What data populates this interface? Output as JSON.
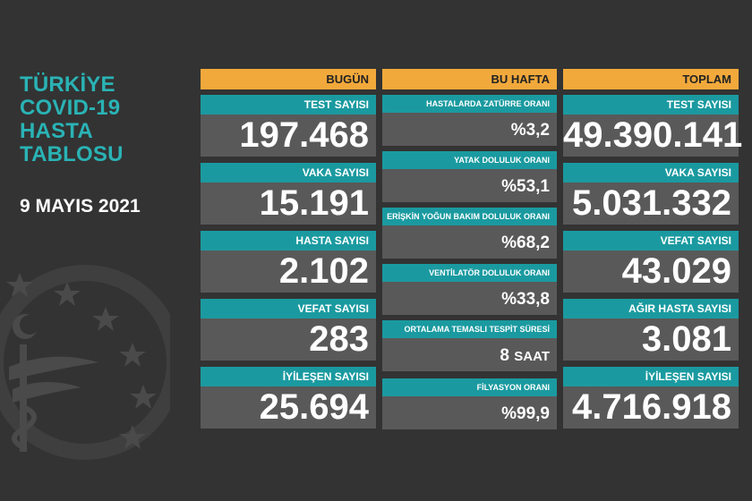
{
  "title_lines": [
    "TÜRKİYE",
    "COVID-19",
    "HASTA",
    "TABLOSU"
  ],
  "date": "9 MAYIS 2021",
  "columns": {
    "today": {
      "header": "BUGÜN",
      "items": [
        {
          "label": "TEST SAYISI",
          "value": "197.468"
        },
        {
          "label": "VAKA SAYISI",
          "value": "15.191"
        },
        {
          "label": "HASTA SAYISI",
          "value": "2.102"
        },
        {
          "label": "VEFAT SAYISI",
          "value": "283"
        },
        {
          "label": "İYİLEŞEN SAYISI",
          "value": "25.694"
        }
      ]
    },
    "week": {
      "header": "BU HAFTA",
      "items": [
        {
          "label": "HASTALARDA ZATÜRRE ORANI",
          "value": "%3,2"
        },
        {
          "label": "YATAK DOLULUK ORANI",
          "value": "%53,1"
        },
        {
          "label": "ERİŞKİN YOĞUN BAKIM DOLULUK ORANI",
          "value": "%68,2"
        },
        {
          "label": "VENTİLATÖR DOLULUK ORANI",
          "value": "%33,8"
        },
        {
          "label": "ORTALAMA TEMASLI TESPİT SÜRESİ",
          "value": "8",
          "unit": "SAAT"
        },
        {
          "label": "FİLYASYON ORANI",
          "value": "%99,9"
        }
      ]
    },
    "total": {
      "header": "TOPLAM",
      "items": [
        {
          "label": "TEST SAYISI",
          "value": "49.390.141"
        },
        {
          "label": "VAKA SAYISI",
          "value": "5.031.332"
        },
        {
          "label": "VEFAT SAYISI",
          "value": "43.029"
        },
        {
          "label": "AĞIR HASTA SAYISI",
          "value": "3.081"
        },
        {
          "label": "İYİLEŞEN SAYISI",
          "value": "4.716.918"
        }
      ]
    }
  },
  "colors": {
    "background": "#333333",
    "accent_teal": "#1a9aa0",
    "header_orange": "#f2a93b",
    "value_box": "#595959"
  },
  "emblem_icon": "ministry-of-health-emblem-icon"
}
